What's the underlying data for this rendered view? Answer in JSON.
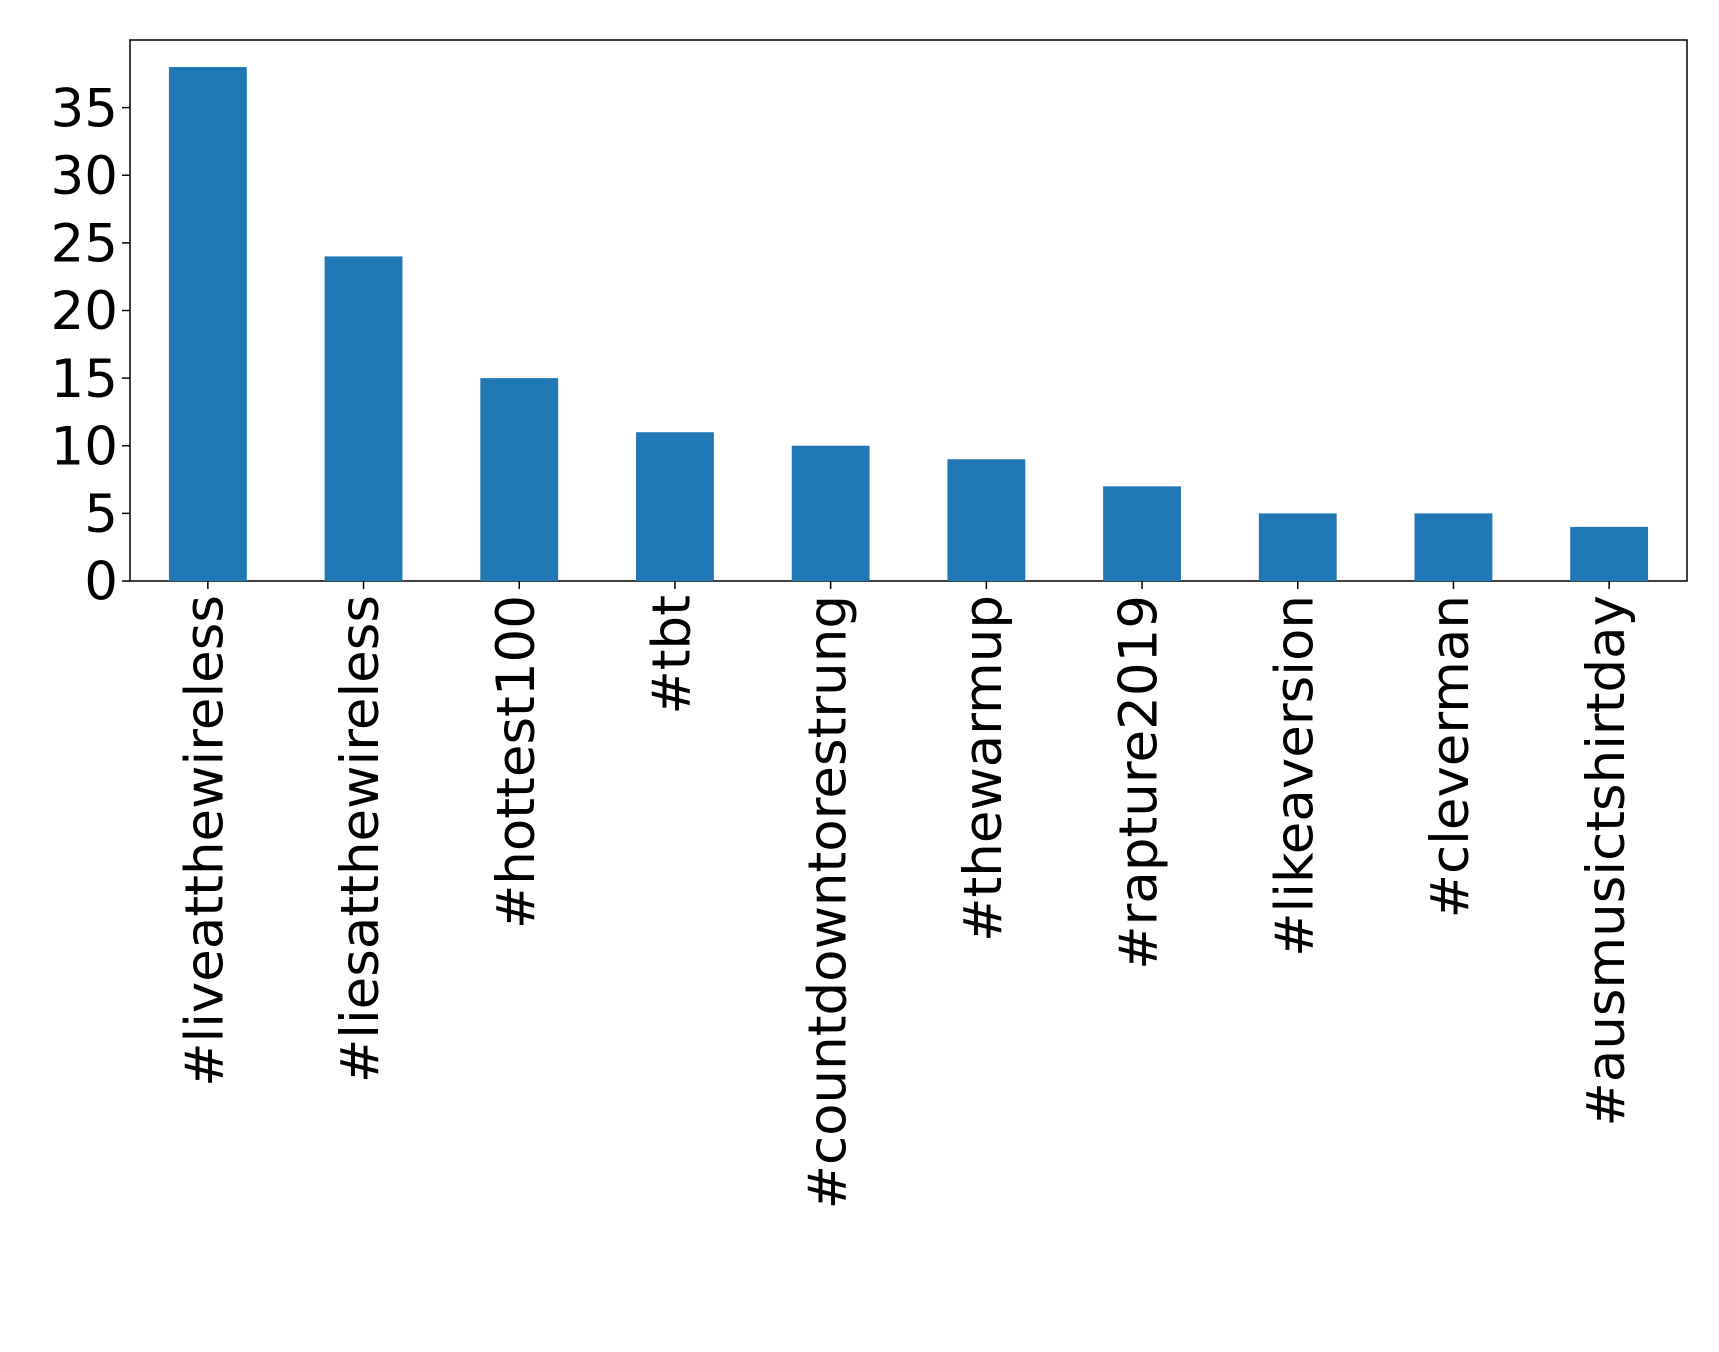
{
  "chart_data": {
    "type": "bar",
    "categories": [
      "#liveatthewireless",
      "#liesatthewireless",
      "#hottest100",
      "#tbt",
      "#countdowntorestrung",
      "#thewarmup",
      "#rapture2019",
      "#likeaversion",
      "#cleverman",
      "#ausmusictshirtday"
    ],
    "values": [
      38,
      24,
      15,
      11,
      10,
      9,
      7,
      5,
      5,
      4
    ],
    "color": "#1f77b4",
    "ylim": [
      0,
      40
    ],
    "yticks": [
      0,
      5,
      10,
      15,
      20,
      25,
      30,
      35
    ],
    "grid": false
  }
}
